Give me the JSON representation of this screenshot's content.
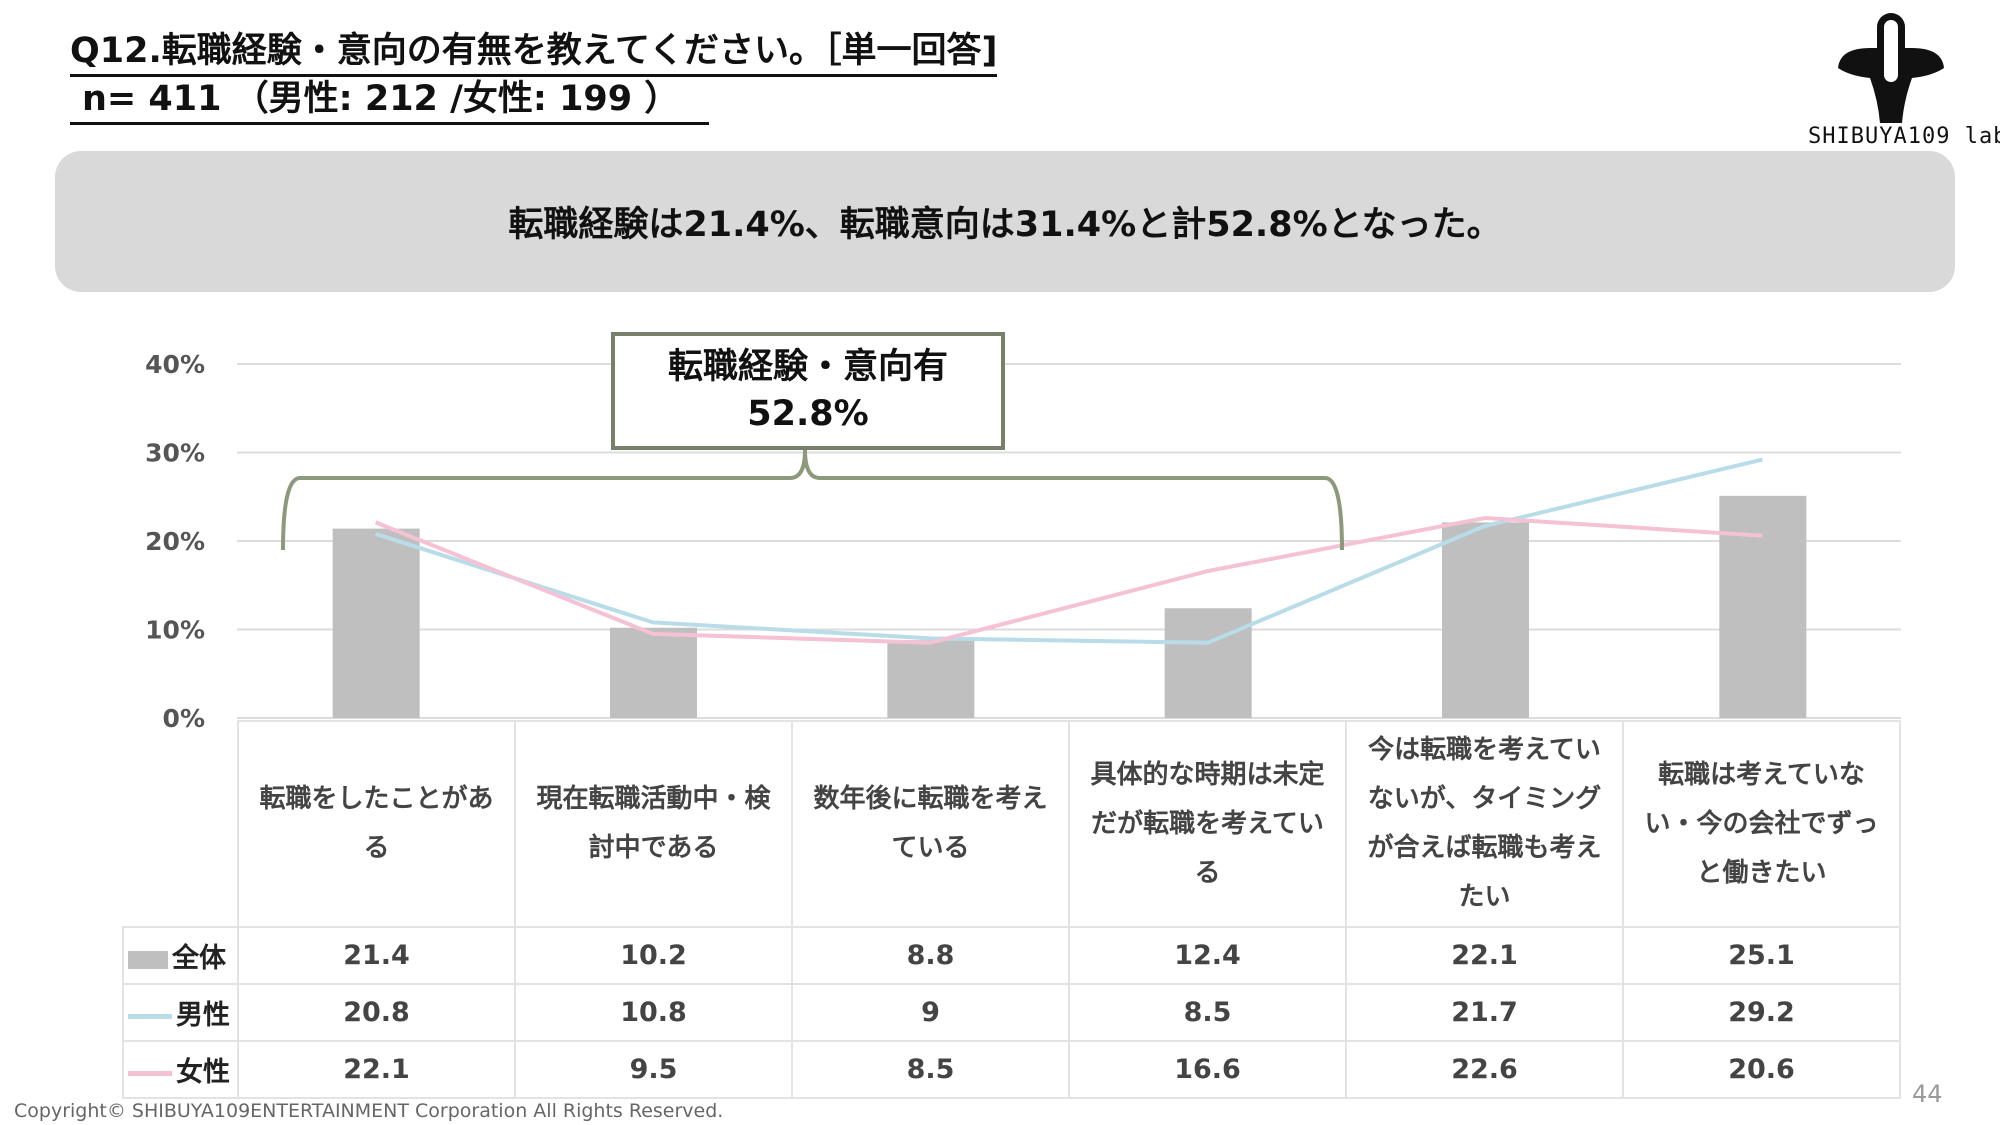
{
  "header": {
    "title": "Q12.転職経験・意向の有無を教えてください。［単一回答]",
    "sample": "n= 411 （男性: 212 /女性: 199 ）"
  },
  "logo": {
    "text": "SHIBUYA109 lab."
  },
  "summary": "転職経験は21.4%、転職意向は31.4%と計52.8%となった。",
  "callout": {
    "label": "転職経験・意向有",
    "value": "52.8%"
  },
  "colors": {
    "all": "#bfbfbf",
    "male": "#b8dce8",
    "female": "#f5c1d5",
    "brace": "#8c9a7c"
  },
  "chart_data": {
    "type": "bar+line",
    "categories": [
      "転職をしたことがある",
      "現在転職活動中・検討中である",
      "数年後に転職を考えている",
      "具体的な時期は未定だが転職を考えている",
      "今は転職を考えていないが、タイミングが合えば転職も考えたい",
      "転職は考えていない・今の会社でずっと働きたい"
    ],
    "series": [
      {
        "name": "全体",
        "kind": "bar",
        "values": [
          21.4,
          10.2,
          8.8,
          12.4,
          22.1,
          25.1
        ]
      },
      {
        "name": "男性",
        "kind": "line",
        "values": [
          20.8,
          10.8,
          9.0,
          8.5,
          21.7,
          29.2
        ]
      },
      {
        "name": "女性",
        "kind": "line",
        "values": [
          22.1,
          9.5,
          8.5,
          16.6,
          22.6,
          20.6
        ]
      }
    ],
    "yticks": [
      "0%",
      "10%",
      "20%",
      "30%",
      "40%"
    ],
    "ylim": [
      0,
      40
    ],
    "grid": true,
    "legend": "data-table"
  },
  "footer": {
    "copyright": "Copyright© SHIBUYA109ENTERTAINMENT Corporation All Rights Reserved.",
    "page": "44"
  }
}
